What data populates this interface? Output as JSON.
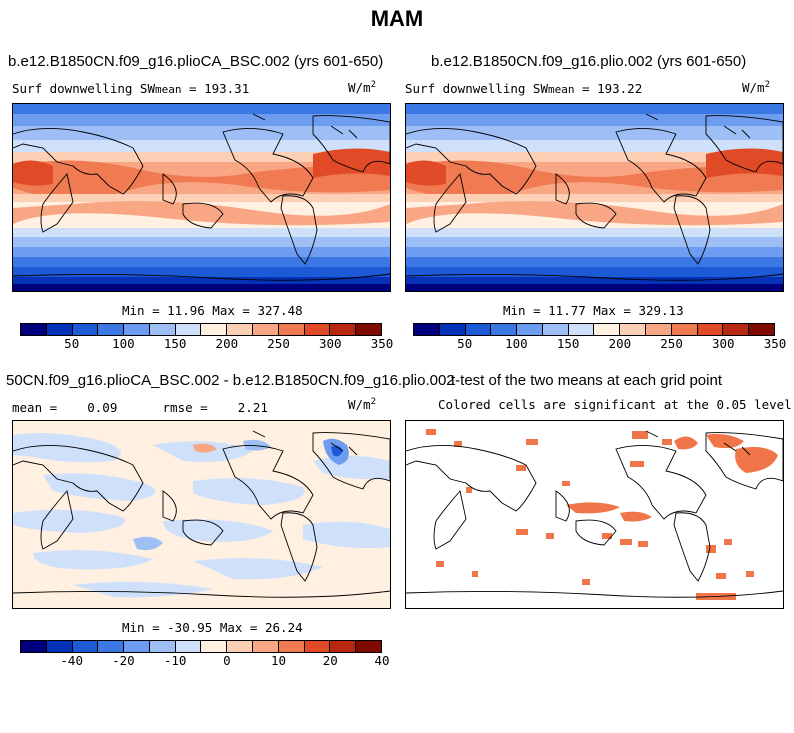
{
  "figure_title": "MAM",
  "panels": {
    "top_left": {
      "case_title": "b.e12.B1850CN.f09_g16.plioCA_BSC.002 (yrs 601-650)",
      "var_name": "Surf downwelling SW",
      "mean_label": "mean",
      "mean_value": "= 193.31",
      "units_base": "W/m",
      "units_exp": "2",
      "minmax": "Min =   11.96 Max =  327.48"
    },
    "top_right": {
      "case_title": "b.e12.B1850CN.f09_g16.plio.002 (yrs 601-650)",
      "var_name": "Surf downwelling SW",
      "mean_label": "mean",
      "mean_value": "= 193.22",
      "units_base": "W/m",
      "units_exp": "2",
      "minmax": "Min =   11.77 Max =  329.13"
    },
    "bottom_left": {
      "case_title": "50CN.f09_g16.plioCA_BSC.002 - b.e12.B1850CN.f09_g16.plio.002",
      "stats": "mean =    0.09      rmse =    2.21",
      "units_base": "W/m",
      "units_exp": "2",
      "minmax": "Min = -30.95 Max =  26.24"
    },
    "bottom_right": {
      "case_title": "t-test of the two means at each grid point",
      "subtitle": "Colored cells are significant at the 0.05 level"
    }
  },
  "colorbars": {
    "abs": {
      "colors": [
        "#00007f",
        "#0632b8",
        "#1c5ad6",
        "#3c78e4",
        "#6e9cf0",
        "#9ebef6",
        "#cfe0fb",
        "#fff0e2",
        "#fcd0b4",
        "#f8a684",
        "#f07a52",
        "#e04a26",
        "#b82810",
        "#7f0a00"
      ],
      "labels": [
        "50",
        "100",
        "150",
        "200",
        "250",
        "300",
        "350"
      ]
    },
    "diff": {
      "colors": [
        "#00007f",
        "#0632b8",
        "#1c5ad6",
        "#3c78e4",
        "#6e9cf0",
        "#9ebef6",
        "#cfe0fb",
        "#fff0e2",
        "#fcd0b4",
        "#f8a684",
        "#f07a52",
        "#e04a26",
        "#b82810",
        "#7f0a00"
      ],
      "labels": [
        "-40",
        "-20",
        "-10",
        "0",
        "10",
        "20",
        "40"
      ]
    }
  },
  "significance_color": "#f0764a"
}
